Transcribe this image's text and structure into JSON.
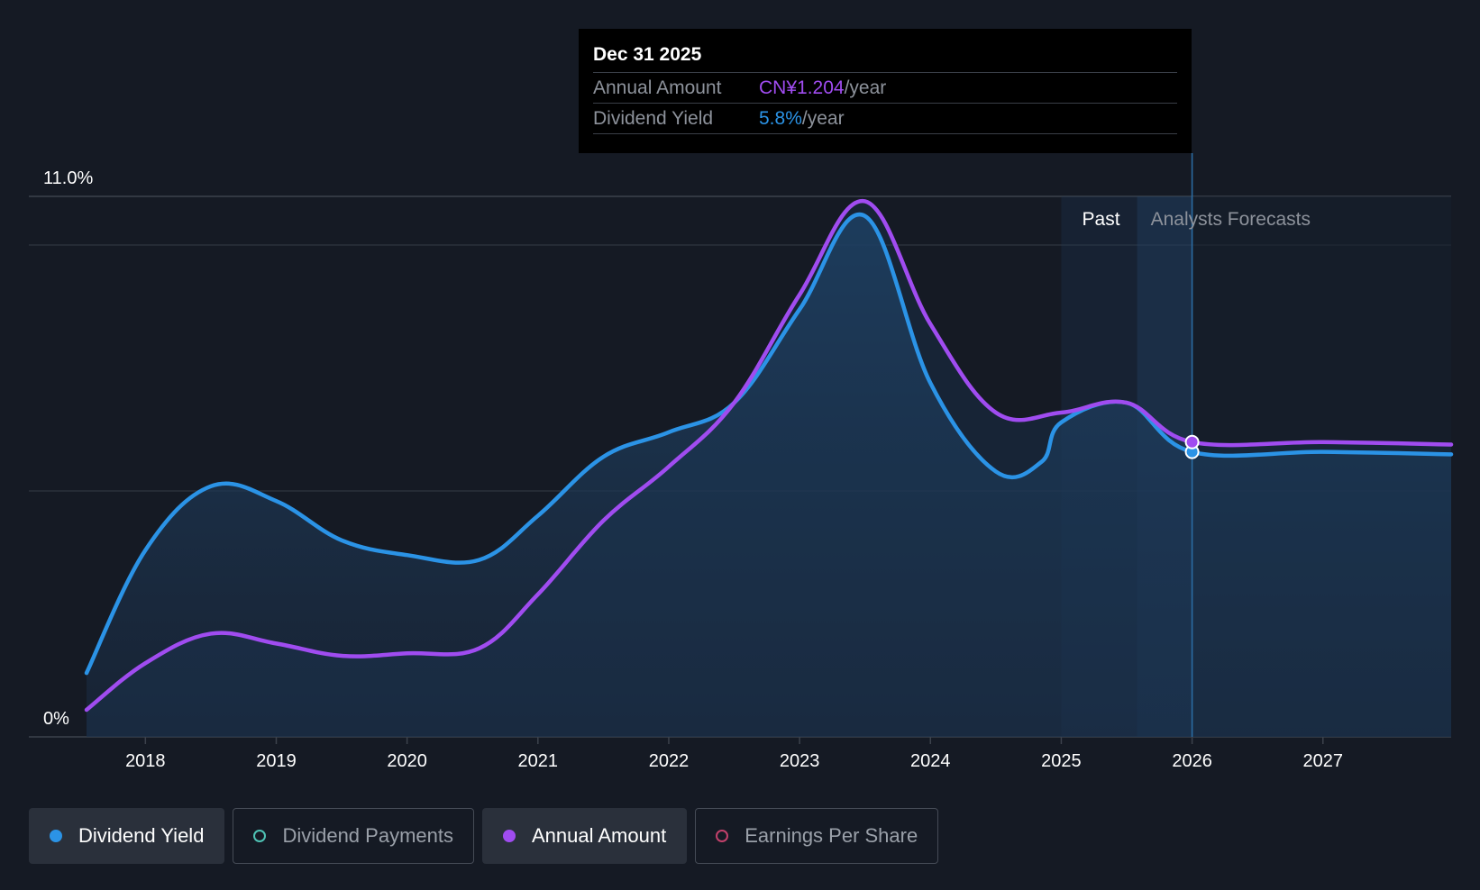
{
  "tooltip": {
    "date": "Dec 31 2025",
    "annual_label": "Annual Amount",
    "annual_value": "CN¥1.204",
    "annual_unit": "/year",
    "yield_label": "Dividend Yield",
    "yield_value": "5.8%",
    "yield_unit": "/year"
  },
  "legend": [
    {
      "label": "Dividend Yield",
      "color": "#2b93e6",
      "active": true,
      "filled": true,
      "name": "legend-dividend-yield"
    },
    {
      "label": "Dividend Payments",
      "color": "#4fc3b5",
      "active": false,
      "filled": false,
      "name": "legend-dividend-payments"
    },
    {
      "label": "Annual Amount",
      "color": "#a04cf0",
      "active": true,
      "filled": true,
      "name": "legend-annual-amount"
    },
    {
      "label": "Earnings Per Share",
      "color": "#c2416b",
      "active": false,
      "filled": false,
      "name": "legend-earnings-per-share"
    }
  ],
  "colors": {
    "background": "#151a24",
    "dividend_yield": "#2b93e6",
    "annual_amount": "#a04cf0",
    "forecast_band": "#1e3550"
  },
  "chart_data": {
    "type": "line",
    "y_tick_labels": [
      "0%",
      "11.0%"
    ],
    "ylim": [
      0,
      11.0
    ],
    "xlim": [
      2017.55,
      2027.98
    ],
    "x_ticks": [
      2018,
      2019,
      2020,
      2021,
      2022,
      2023,
      2024,
      2025,
      2026,
      2027
    ],
    "past_label": "Past",
    "forecast_label": "Analysts Forecasts",
    "past_region": [
      2025.0,
      2026.0
    ],
    "hover_x": 2026.0,
    "series": [
      {
        "name": "Dividend Yield",
        "color": "#2b93e6",
        "x": [
          2017.55,
          2018.0,
          2018.5,
          2019.0,
          2019.5,
          2020.0,
          2020.55,
          2021.0,
          2021.5,
          2022.0,
          2022.5,
          2023.0,
          2023.5,
          2024.0,
          2024.5,
          2024.85,
          2025.0,
          2025.5,
          2026.0,
          2027.0,
          2027.98
        ],
        "values": [
          1.3,
          3.8,
          5.1,
          4.8,
          4.0,
          3.7,
          3.6,
          4.5,
          5.7,
          6.2,
          6.8,
          8.7,
          10.6,
          7.2,
          5.4,
          5.6,
          6.4,
          6.8,
          5.8,
          5.8,
          5.75
        ]
      },
      {
        "name": "Annual Amount",
        "color": "#a04cf0",
        "x": [
          2017.55,
          2018.0,
          2018.5,
          2019.0,
          2019.5,
          2020.0,
          2020.55,
          2021.0,
          2021.5,
          2022.0,
          2022.5,
          2023.0,
          2023.5,
          2024.0,
          2024.5,
          2025.0,
          2025.5,
          2026.0,
          2027.0,
          2027.98
        ],
        "values": [
          0.55,
          1.5,
          2.1,
          1.9,
          1.65,
          1.7,
          1.8,
          2.9,
          4.4,
          5.5,
          6.8,
          9.0,
          10.9,
          8.4,
          6.6,
          6.6,
          6.8,
          6.0,
          6.0,
          5.95
        ]
      }
    ]
  }
}
